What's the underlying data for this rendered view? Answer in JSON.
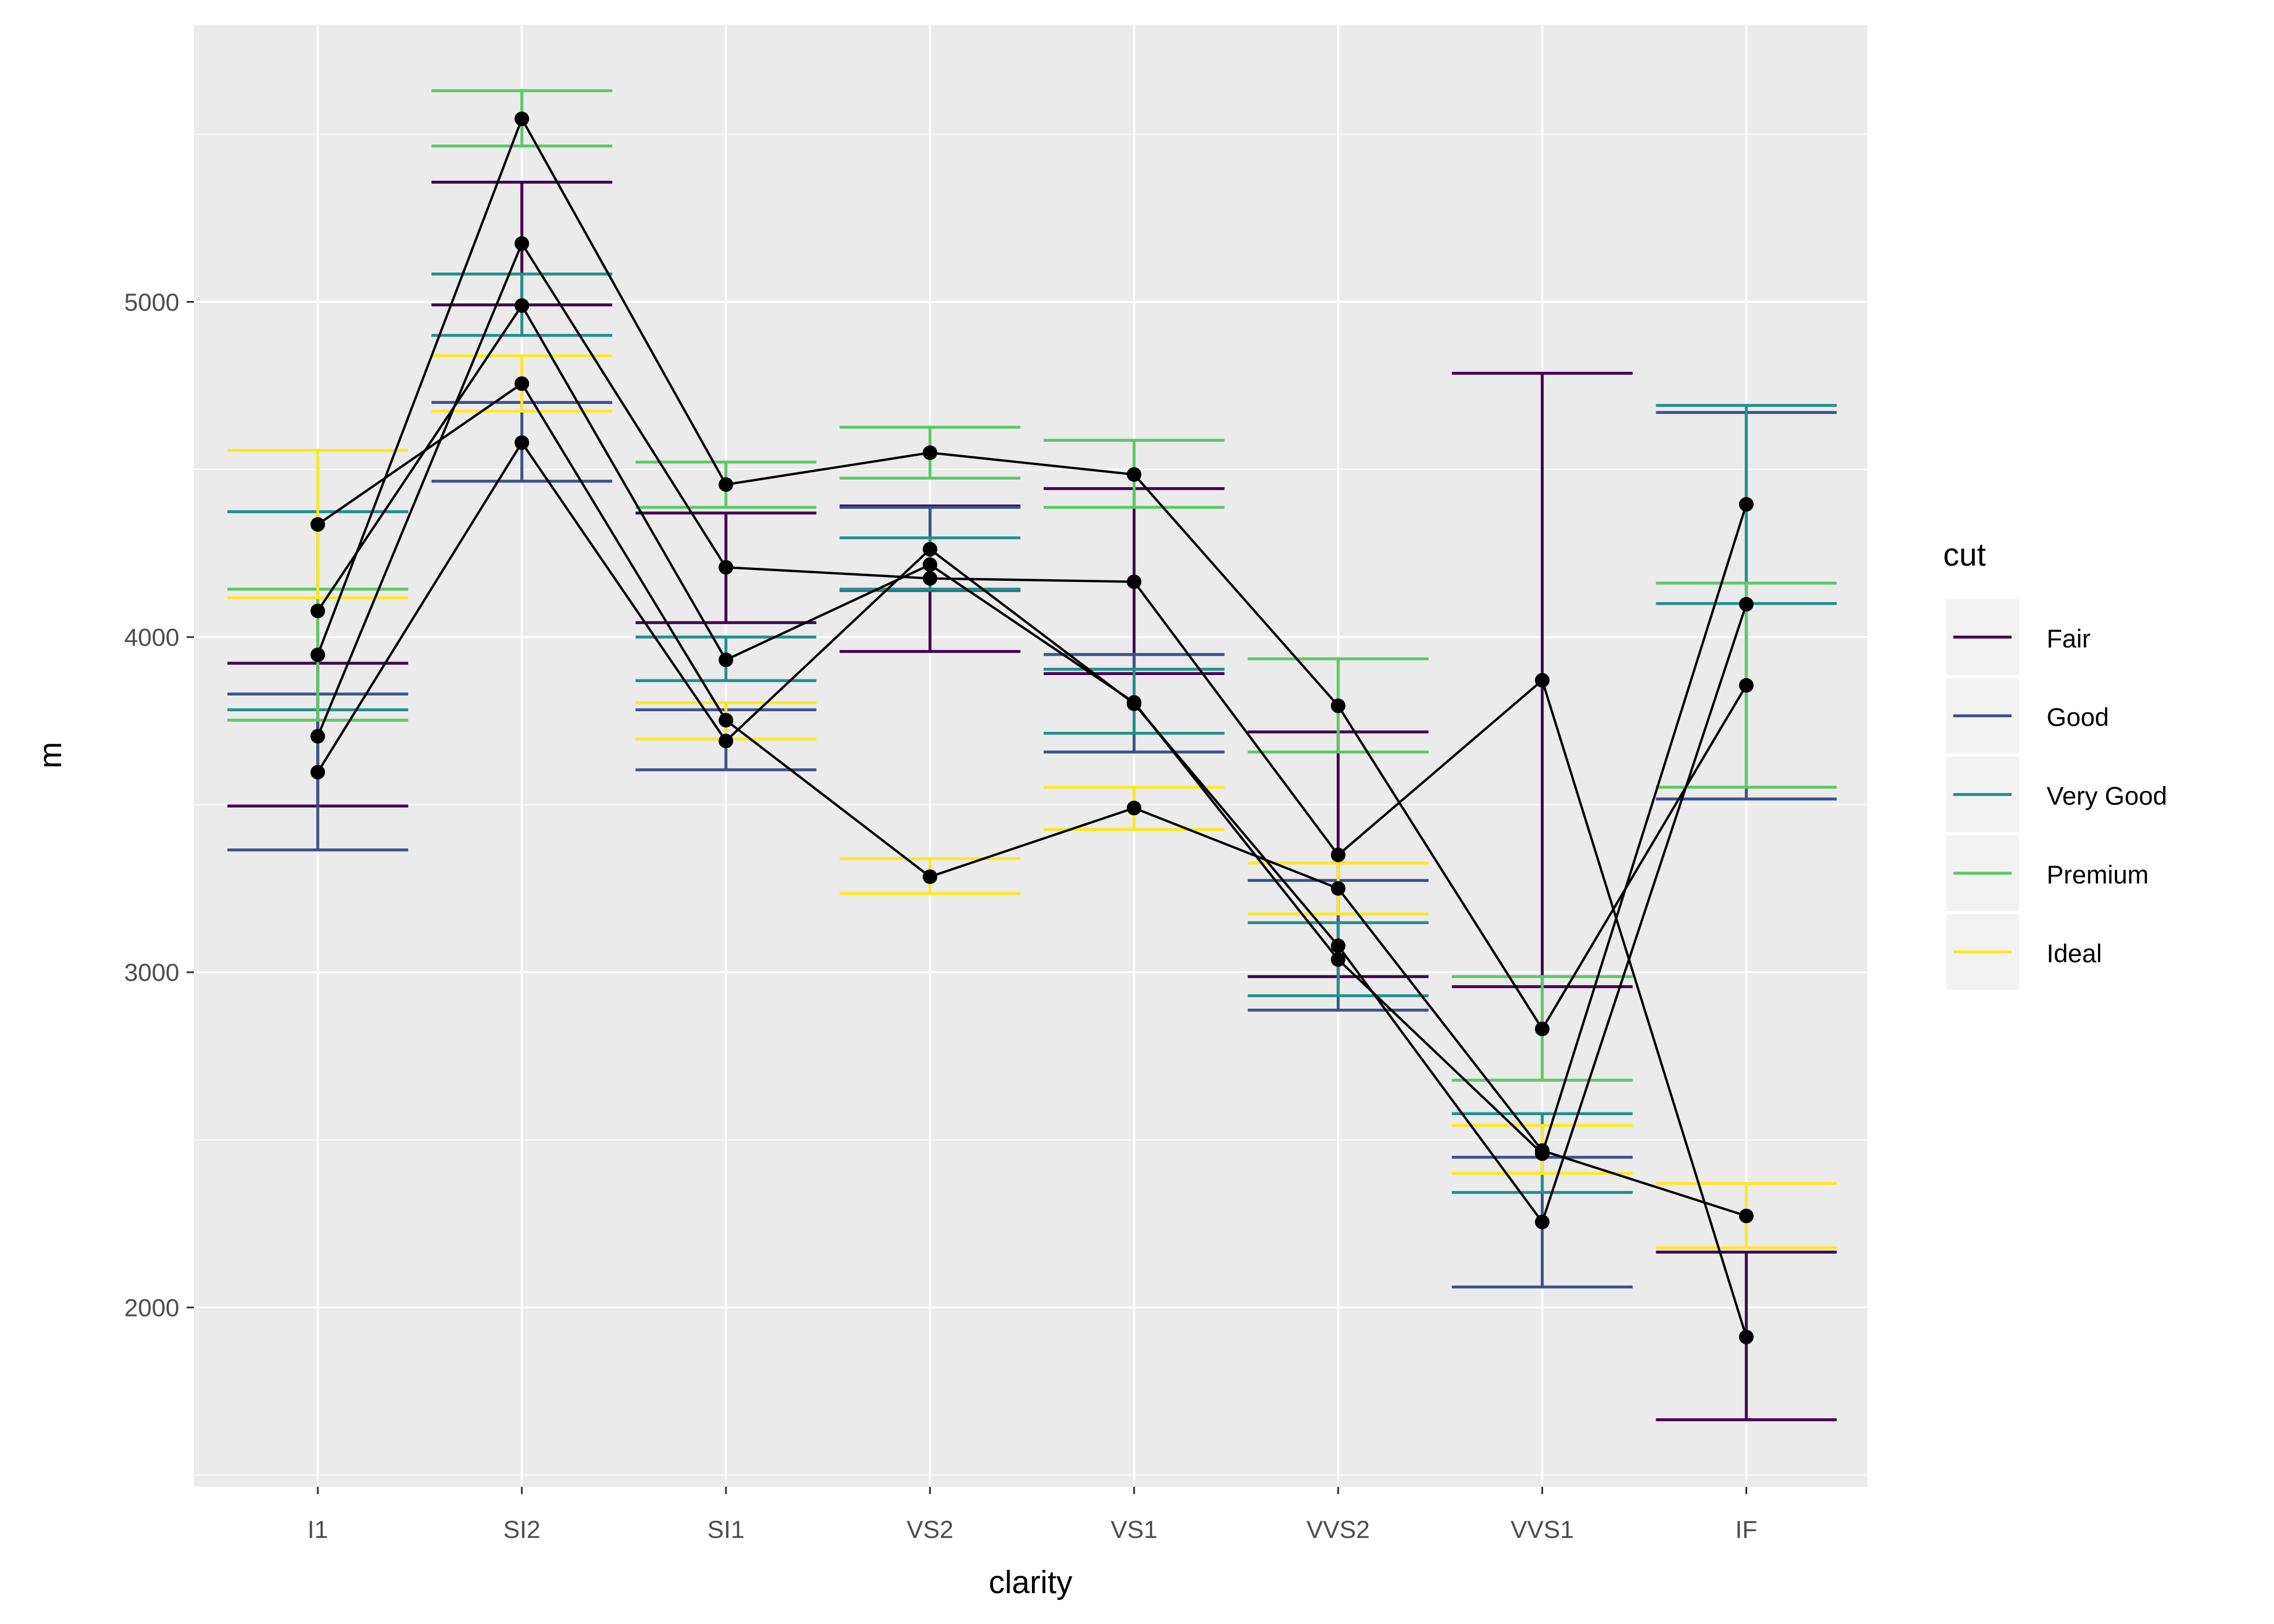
{
  "chart_data": {
    "type": "line",
    "title": "",
    "xlabel": "clarity",
    "ylabel": "m",
    "categories": [
      "I1",
      "SI2",
      "SI1",
      "VS2",
      "VS1",
      "VVS2",
      "VVS1",
      "IF"
    ],
    "ylim": [
      1465,
      5826
    ],
    "yticks": [
      2000,
      3000,
      4000,
      5000
    ],
    "grid": true,
    "legend": {
      "title": "cut",
      "placement": "right"
    },
    "series": [
      {
        "name": "Fair",
        "color": "#440154",
        "values": [
          3704,
          5174,
          4208,
          4175,
          4165,
          3350,
          3871,
          1912
        ],
        "lower": [
          3496,
          4991,
          4043,
          3957,
          3891,
          2987,
          2957,
          1665
        ],
        "upper": [
          3922,
          5357,
          4370,
          4391,
          4443,
          3717,
          4787,
          2165
        ]
      },
      {
        "name": "Good",
        "color": "#3B528B",
        "values": [
          3597,
          4580,
          3690,
          4262,
          3801,
          3079,
          2255,
          4098
        ],
        "lower": [
          3365,
          4465,
          3604,
          4139,
          3657,
          2887,
          2061,
          3517
        ],
        "upper": [
          3830,
          4700,
          3783,
          4387,
          3948,
          3274,
          2448,
          4670
        ]
      },
      {
        "name": "Very Good",
        "color": "#21908C",
        "values": [
          4078,
          4989,
          3932,
          4216,
          3805,
          3038,
          2459,
          4396
        ],
        "lower": [
          3783,
          4900,
          3870,
          4143,
          3713,
          2930,
          2343,
          4100
        ],
        "upper": [
          4374,
          5083,
          4000,
          4296,
          3904,
          3148,
          2578,
          4691
        ]
      },
      {
        "name": "Premium",
        "color": "#5DC863",
        "values": [
          3947,
          5546,
          4455,
          4550,
          4485,
          3795,
          2831,
          3856
        ],
        "lower": [
          3752,
          5465,
          4387,
          4474,
          4387,
          3657,
          2678,
          3552
        ],
        "upper": [
          4143,
          5630,
          4522,
          4626,
          4587,
          3935,
          2987,
          4161
        ]
      },
      {
        "name": "Ideal",
        "color": "#FDE725",
        "values": [
          4336,
          4756,
          3752,
          3285,
          3490,
          3250,
          2468,
          2273
        ],
        "lower": [
          4117,
          4674,
          3696,
          3235,
          3426,
          3174,
          2400,
          2178
        ],
        "upper": [
          4557,
          4839,
          3804,
          3339,
          3552,
          3326,
          2543,
          2370
        ]
      }
    ]
  }
}
